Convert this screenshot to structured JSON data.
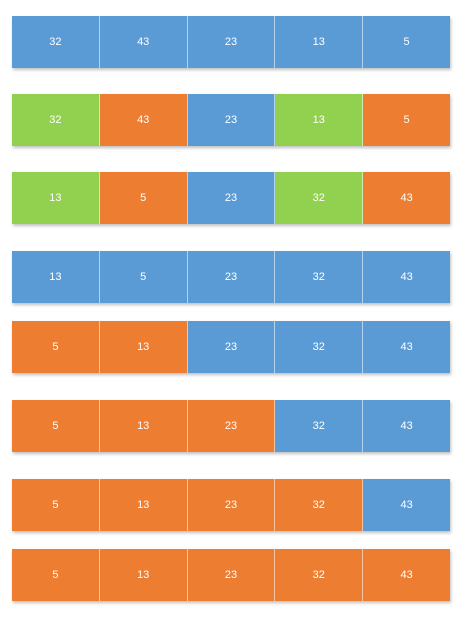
{
  "colors": {
    "blue": "#5b9bd5",
    "orange": "#ed7d31",
    "green": "#92d050"
  },
  "rows": [
    {
      "cells": [
        {
          "value": "32",
          "color": "blue"
        },
        {
          "value": "43",
          "color": "blue"
        },
        {
          "value": "23",
          "color": "blue"
        },
        {
          "value": "13",
          "color": "blue"
        },
        {
          "value": "5",
          "color": "blue"
        }
      ]
    },
    {
      "cells": [
        {
          "value": "32",
          "color": "green"
        },
        {
          "value": "43",
          "color": "orange"
        },
        {
          "value": "23",
          "color": "blue"
        },
        {
          "value": "13",
          "color": "green"
        },
        {
          "value": "5",
          "color": "orange"
        }
      ]
    },
    {
      "cells": [
        {
          "value": "13",
          "color": "green"
        },
        {
          "value": "5",
          "color": "orange"
        },
        {
          "value": "23",
          "color": "blue"
        },
        {
          "value": "32",
          "color": "green"
        },
        {
          "value": "43",
          "color": "orange"
        }
      ]
    },
    {
      "cells": [
        {
          "value": "13",
          "color": "blue"
        },
        {
          "value": "5",
          "color": "blue"
        },
        {
          "value": "23",
          "color": "blue"
        },
        {
          "value": "32",
          "color": "blue"
        },
        {
          "value": "43",
          "color": "blue"
        }
      ]
    },
    {
      "cells": [
        {
          "value": "5",
          "color": "orange"
        },
        {
          "value": "13",
          "color": "orange"
        },
        {
          "value": "23",
          "color": "blue"
        },
        {
          "value": "32",
          "color": "blue"
        },
        {
          "value": "43",
          "color": "blue"
        }
      ]
    },
    {
      "cells": [
        {
          "value": "5",
          "color": "orange"
        },
        {
          "value": "13",
          "color": "orange"
        },
        {
          "value": "23",
          "color": "orange"
        },
        {
          "value": "32",
          "color": "blue"
        },
        {
          "value": "43",
          "color": "blue"
        }
      ]
    },
    {
      "cells": [
        {
          "value": "5",
          "color": "orange"
        },
        {
          "value": "13",
          "color": "orange"
        },
        {
          "value": "23",
          "color": "orange"
        },
        {
          "value": "32",
          "color": "orange"
        },
        {
          "value": "43",
          "color": "blue"
        }
      ]
    },
    {
      "cells": [
        {
          "value": "5",
          "color": "orange"
        },
        {
          "value": "13",
          "color": "orange"
        },
        {
          "value": "23",
          "color": "orange"
        },
        {
          "value": "32",
          "color": "orange"
        },
        {
          "value": "43",
          "color": "orange"
        }
      ]
    }
  ]
}
